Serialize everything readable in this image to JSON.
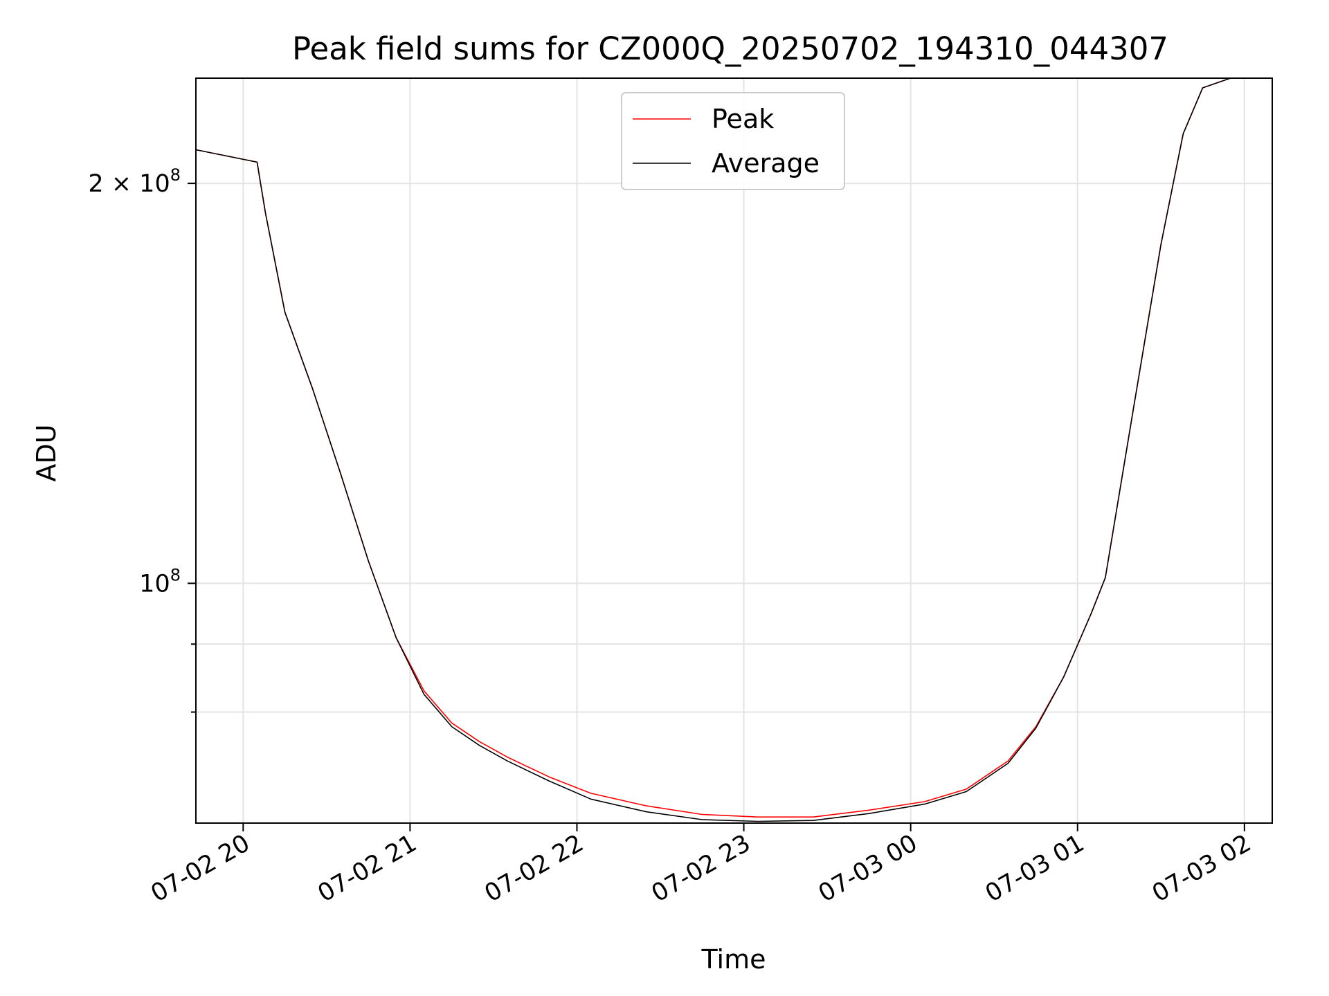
{
  "chart_data": {
    "type": "line",
    "title": "Peak field sums for CZ000Q_20250702_194310_044307",
    "xlabel": "Time",
    "ylabel": "ADU",
    "x_type": "time",
    "xlim": [
      "2025-07-02T19:43",
      "2025-07-03T02:10"
    ],
    "y_scale": "log",
    "ylim": [
      66000000,
      240000000
    ],
    "x_ticks": [
      {
        "t": "2025-07-02T20:00",
        "label": "07-02 20"
      },
      {
        "t": "2025-07-02T21:00",
        "label": "07-02 21"
      },
      {
        "t": "2025-07-02T22:00",
        "label": "07-02 22"
      },
      {
        "t": "2025-07-02T23:00",
        "label": "07-02 23"
      },
      {
        "t": "2025-07-03T00:00",
        "label": "07-03 00"
      },
      {
        "t": "2025-07-03T01:00",
        "label": "07-03 01"
      },
      {
        "t": "2025-07-03T02:00",
        "label": "07-03 02"
      }
    ],
    "y_major_ticks": [
      {
        "value": 100000000,
        "label": "10",
        "exp": "8",
        "mantissa": ""
      },
      {
        "value": 200000000,
        "label": "10",
        "exp": "8",
        "mantissa": "2 × "
      }
    ],
    "y_minor_ticks": [
      80000000,
      90000000
    ],
    "grid": true,
    "legend_position": "top-center",
    "series": [
      {
        "name": "Peak",
        "color": "#ff0000",
        "points": [
          [
            "2025-07-02T19:43",
            212000000
          ],
          [
            "2025-07-02T20:05",
            207500000
          ],
          [
            "2025-07-02T20:08",
            190000000
          ],
          [
            "2025-07-02T20:15",
            160000000
          ],
          [
            "2025-07-02T20:25",
            140000000
          ],
          [
            "2025-07-02T20:35",
            121000000
          ],
          [
            "2025-07-02T20:45",
            104000000
          ],
          [
            "2025-07-02T20:55",
            91000000
          ],
          [
            "2025-07-02T21:05",
            83000000
          ],
          [
            "2025-07-02T21:15",
            78500000
          ],
          [
            "2025-07-02T21:25",
            76000000
          ],
          [
            "2025-07-02T21:35",
            74000000
          ],
          [
            "2025-07-02T21:50",
            71500000
          ],
          [
            "2025-07-02T22:05",
            69500000
          ],
          [
            "2025-07-02T22:25",
            68000000
          ],
          [
            "2025-07-02T22:45",
            67000000
          ],
          [
            "2025-07-02T23:05",
            66700000
          ],
          [
            "2025-07-02T23:25",
            66700000
          ],
          [
            "2025-07-02T23:45",
            67500000
          ],
          [
            "2025-07-03T00:05",
            68500000
          ],
          [
            "2025-07-03T00:20",
            70000000
          ],
          [
            "2025-07-03T00:35",
            73500000
          ],
          [
            "2025-07-03T00:45",
            78000000
          ],
          [
            "2025-07-03T00:55",
            85000000
          ],
          [
            "2025-07-03T01:05",
            95000000
          ],
          [
            "2025-07-03T01:10",
            101000000
          ],
          [
            "2025-07-03T01:20",
            135000000
          ],
          [
            "2025-07-03T01:30",
            180000000
          ],
          [
            "2025-07-03T01:38",
            218000000
          ],
          [
            "2025-07-03T01:45",
            236000000
          ],
          [
            "2025-07-03T01:55",
            240000000
          ],
          [
            "2025-07-03T02:00",
            240000000
          ]
        ]
      },
      {
        "name": "Average",
        "color": "#000000",
        "points": [
          [
            "2025-07-02T19:43",
            212000000
          ],
          [
            "2025-07-02T20:05",
            207500000
          ],
          [
            "2025-07-02T20:08",
            190000000
          ],
          [
            "2025-07-02T20:15",
            160000000
          ],
          [
            "2025-07-02T20:25",
            140000000
          ],
          [
            "2025-07-02T20:35",
            121000000
          ],
          [
            "2025-07-02T20:45",
            104000000
          ],
          [
            "2025-07-02T20:55",
            91000000
          ],
          [
            "2025-07-02T21:05",
            82500000
          ],
          [
            "2025-07-02T21:15",
            78000000
          ],
          [
            "2025-07-02T21:25",
            75500000
          ],
          [
            "2025-07-02T21:35",
            73500000
          ],
          [
            "2025-07-02T21:50",
            71000000
          ],
          [
            "2025-07-02T22:05",
            68800000
          ],
          [
            "2025-07-02T22:25",
            67300000
          ],
          [
            "2025-07-02T22:45",
            66400000
          ],
          [
            "2025-07-02T23:05",
            66200000
          ],
          [
            "2025-07-02T23:25",
            66300000
          ],
          [
            "2025-07-02T23:45",
            67100000
          ],
          [
            "2025-07-03T00:05",
            68200000
          ],
          [
            "2025-07-03T00:20",
            69700000
          ],
          [
            "2025-07-03T00:35",
            73200000
          ],
          [
            "2025-07-03T00:45",
            77800000
          ],
          [
            "2025-07-03T00:55",
            85000000
          ],
          [
            "2025-07-03T01:05",
            95000000
          ],
          [
            "2025-07-03T01:10",
            101000000
          ],
          [
            "2025-07-03T01:20",
            135000000
          ],
          [
            "2025-07-03T01:30",
            180000000
          ],
          [
            "2025-07-03T01:38",
            218000000
          ],
          [
            "2025-07-03T01:45",
            236000000
          ],
          [
            "2025-07-03T01:55",
            240000000
          ],
          [
            "2025-07-03T02:00",
            240000000
          ]
        ]
      }
    ]
  }
}
